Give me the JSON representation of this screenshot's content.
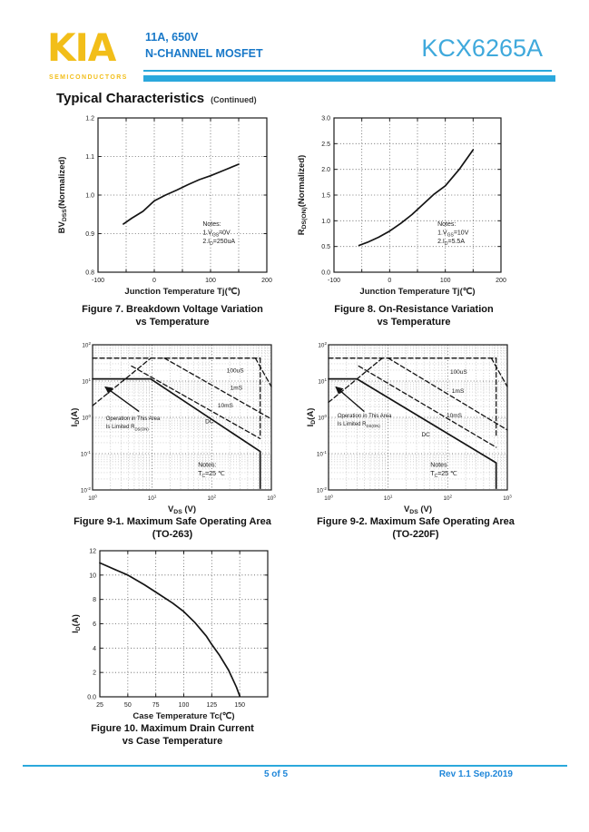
{
  "header": {
    "logo_text": "KIA",
    "logo_subtext": "SEMICONDUCTORS",
    "part_rating": "11A, 650V",
    "part_type": "N-CHANNEL MOSFET",
    "part_number": "KCX6265A"
  },
  "section_title": {
    "main": "Typical Characteristics",
    "continued": "(Continued)"
  },
  "footer": {
    "page": "5 of 5",
    "rev": "Rev 1.1 Sep.2019"
  },
  "colors": {
    "logo_yellow": "#F2BE19",
    "header_blue": "#1878C8",
    "part_number_blue": "#3FA9DC",
    "rule_cyan": "#2BA8DC",
    "footer_blue": "#1E86D9",
    "ink": "#1A1A1A"
  },
  "chart_data": [
    {
      "id": "fig7",
      "type": "line",
      "caption": [
        "Figure 7. Breakdown Voltage Variation",
        "vs Temperature"
      ],
      "xlabel": "Junction Temperature Tj(℃)",
      "ylabel": [
        {
          "t": "BV"
        },
        {
          "t": "DSS",
          "sub": true
        },
        {
          "t": "(Normalized)"
        }
      ],
      "xlim": [
        -100,
        200
      ],
      "ylim": [
        0.8,
        1.2
      ],
      "xticks": [
        [
          -100,
          "-100"
        ],
        [
          0,
          "0"
        ],
        [
          100,
          "100"
        ],
        [
          200,
          "200"
        ]
      ],
      "yticks": [
        [
          0.8,
          "0.8"
        ],
        [
          0.9,
          "0.9"
        ],
        [
          1.0,
          "1.0"
        ],
        [
          1.1,
          "1.1"
        ],
        [
          1.2,
          "1.2"
        ]
      ],
      "xgrid": [
        -50,
        0,
        50,
        100,
        150
      ],
      "ygrid": [
        0.9,
        1.0,
        1.1
      ],
      "series": [
        {
          "name": "BVdss",
          "dash": false,
          "pts": [
            [
              -55,
              0.925
            ],
            [
              -40,
              0.94
            ],
            [
              -20,
              0.958
            ],
            [
              0,
              0.985
            ],
            [
              20,
              1.0
            ],
            [
              40,
              1.013
            ],
            [
              60,
              1.027
            ],
            [
              80,
              1.04
            ],
            [
              100,
              1.05
            ],
            [
              125,
              1.065
            ],
            [
              150,
              1.08
            ]
          ]
        }
      ],
      "notes": {
        "at": [
          0.62,
          0.7
        ],
        "lines": [
          [
            {
              "t": "Notes:"
            }
          ],
          [
            {
              "t": "1.V"
            },
            {
              "t": "GS",
              "sub": true
            },
            {
              "t": "=0V"
            }
          ],
          [
            {
              "t": "2.I"
            },
            {
              "t": "D",
              "sub": true
            },
            {
              "t": "=250uA"
            }
          ]
        ]
      }
    },
    {
      "id": "fig8",
      "type": "line",
      "caption": [
        "Figure 8. On-Resistance Variation",
        "vs Temperature"
      ],
      "xlabel": "Junction Temperature Tj(℃)",
      "ylabel": [
        {
          "t": "R"
        },
        {
          "t": "DS(ON)",
          "sub": true
        },
        {
          "t": "(Normalized)"
        }
      ],
      "xlim": [
        -100,
        200
      ],
      "ylim": [
        0,
        3
      ],
      "xticks": [
        [
          -100,
          "-100"
        ],
        [
          0,
          "0"
        ],
        [
          100,
          "100"
        ],
        [
          200,
          "200"
        ]
      ],
      "yticks": [
        [
          0,
          "0.0"
        ],
        [
          0.5,
          "0.5"
        ],
        [
          1.0,
          "1.0"
        ],
        [
          1.5,
          "1.5"
        ],
        [
          2.0,
          "2.0"
        ],
        [
          2.5,
          "2.5"
        ],
        [
          3.0,
          "3.0"
        ]
      ],
      "xgrid": [
        -50,
        0,
        50,
        100,
        150
      ],
      "ygrid": [
        0.5,
        1.0,
        1.5,
        2.0,
        2.5
      ],
      "series": [
        {
          "name": "Rdson",
          "dash": false,
          "pts": [
            [
              -55,
              0.52
            ],
            [
              -40,
              0.58
            ],
            [
              -20,
              0.68
            ],
            [
              0,
              0.8
            ],
            [
              20,
              0.95
            ],
            [
              40,
              1.12
            ],
            [
              60,
              1.32
            ],
            [
              80,
              1.52
            ],
            [
              100,
              1.68
            ],
            [
              125,
              2.0
            ],
            [
              150,
              2.38
            ]
          ]
        }
      ],
      "notes": {
        "at": [
          0.62,
          0.7
        ],
        "lines": [
          [
            {
              "t": "Notes:"
            }
          ],
          [
            {
              "t": "1.V"
            },
            {
              "t": "GS",
              "sub": true
            },
            {
              "t": "=10V"
            }
          ],
          [
            {
              "t": "2.I"
            },
            {
              "t": "D",
              "sub": true
            },
            {
              "t": "=5.5A"
            }
          ]
        ]
      }
    },
    {
      "id": "fig9_1",
      "type": "soa",
      "caption": [
        "Figure 9-1. Maximum Safe Operating Area",
        "(TO-263)"
      ],
      "xlabel": [
        {
          "t": "V"
        },
        {
          "t": "DS",
          "sub": true
        },
        {
          "t": " (V)"
        }
      ],
      "ylabel": [
        {
          "t": "I"
        },
        {
          "t": "D",
          "sub": true
        },
        {
          "t": "(A)"
        }
      ],
      "xdec": [
        0,
        3
      ],
      "ydec": [
        -2,
        2
      ],
      "series": [
        {
          "name": "pulsed-current-limit",
          "dash": true,
          "pts": [
            [
              1,
              43
            ],
            [
              650,
              43
            ]
          ]
        },
        {
          "name": "voltage-limit-650V",
          "dash": true,
          "pts": [
            [
              650,
              43
            ],
            [
              650,
              0.3
            ]
          ]
        },
        {
          "name": "rdson-limit",
          "dash": true,
          "pts": [
            [
              1,
              2.1
            ],
            [
              9.5,
              43
            ]
          ]
        },
        {
          "name": "100uS",
          "dash": true,
          "pts": [
            [
              540,
              43
            ],
            [
              1000,
              7
            ]
          ]
        },
        {
          "name": "1mS",
          "dash": true,
          "pts": [
            [
              16,
              43
            ],
            [
              1000,
              0.9
            ]
          ]
        },
        {
          "name": "10mS",
          "dash": true,
          "pts": [
            [
              4.5,
              26
            ],
            [
              650,
              0.26
            ]
          ]
        },
        {
          "name": "DC",
          "dash": false,
          "pts": [
            [
              1,
              11.5
            ],
            [
              9.4,
              11.5
            ],
            [
              650,
              0.115
            ],
            [
              650,
              0.011
            ]
          ]
        }
      ],
      "labels": [
        [
          "100uS",
          0.75,
          0.19
        ],
        [
          "1mS",
          0.77,
          0.31
        ],
        [
          "10mS",
          0.7,
          0.43
        ],
        [
          "DC",
          0.63,
          0.54
        ]
      ],
      "annotation": {
        "lines": [
          [
            {
              "t": "Operation in This Area"
            }
          ],
          [
            {
              "t": "Is Limited R"
            },
            {
              "t": "DS(ON)",
              "sub": true
            }
          ]
        ],
        "at": [
          0.075,
          0.52
        ],
        "arrow": [
          0.26,
          0.46,
          0.07,
          0.29
        ]
      },
      "notes": {
        "at": [
          0.59,
          0.84
        ],
        "lines": [
          [
            {
              "t": "Notes:"
            }
          ],
          [
            {
              "t": "T"
            },
            {
              "t": "C",
              "sub": true
            },
            {
              "t": "=25 ℃"
            }
          ]
        ]
      }
    },
    {
      "id": "fig9_2",
      "type": "soa",
      "caption": [
        "Figure 9-2. Maximum Safe Operating Area",
        "(TO-220F)"
      ],
      "xlabel": [
        {
          "t": "V"
        },
        {
          "t": "DS",
          "sub": true
        },
        {
          "t": " (V)"
        }
      ],
      "ylabel": [
        {
          "t": "I"
        },
        {
          "t": "D",
          "sub": true
        },
        {
          "t": "(A)"
        }
      ],
      "xdec": [
        0,
        3
      ],
      "ydec": [
        -2,
        2
      ],
      "series": [
        {
          "name": "pulsed-current-limit",
          "dash": true,
          "pts": [
            [
              1,
              43
            ],
            [
              650,
              43
            ]
          ]
        },
        {
          "name": "voltage-limit-650V",
          "dash": true,
          "pts": [
            [
              650,
              43
            ],
            [
              650,
              0.3
            ]
          ]
        },
        {
          "name": "rdson-limit",
          "dash": true,
          "pts": [
            [
              1,
              2.6
            ],
            [
              8,
              43
            ]
          ]
        },
        {
          "name": "100uS",
          "dash": true,
          "pts": [
            [
              540,
              43
            ],
            [
              1000,
              7
            ]
          ]
        },
        {
          "name": "1mS",
          "dash": true,
          "pts": [
            [
              10,
              43
            ],
            [
              1000,
              0.45
            ]
          ]
        },
        {
          "name": "10mS",
          "dash": true,
          "pts": [
            [
              3.2,
              26
            ],
            [
              650,
              0.15
            ]
          ]
        },
        {
          "name": "DC",
          "dash": false,
          "pts": [
            [
              1,
              11.5
            ],
            [
              3,
              11.5
            ],
            [
              650,
              0.056
            ],
            [
              650,
              0.011
            ]
          ]
        }
      ],
      "labels": [
        [
          "100uS",
          0.68,
          0.2
        ],
        [
          "1mS",
          0.69,
          0.33
        ],
        [
          "10mS",
          0.66,
          0.5
        ],
        [
          "DC",
          0.52,
          0.63
        ]
      ],
      "annotation": {
        "lines": [
          [
            {
              "t": "Operation in This Area"
            }
          ],
          [
            {
              "t": "Is Limited R"
            },
            {
              "t": "DS(ON)",
              "sub": true
            }
          ]
        ],
        "at": [
          0.05,
          0.5
        ],
        "arrow": [
          0.2,
          0.46,
          0.04,
          0.29
        ]
      },
      "notes": {
        "at": [
          0.57,
          0.84
        ],
        "lines": [
          [
            {
              "t": "Notes"
            }
          ],
          [
            {
              "t": "T"
            },
            {
              "t": "C",
              "sub": true
            },
            {
              "t": "=25 ℃"
            }
          ]
        ]
      }
    },
    {
      "id": "fig10",
      "type": "line",
      "caption": [
        "Figure 10. Maximum Drain Current",
        "vs Case Temperature"
      ],
      "xlabel": "Case Temperature Tc(℃)",
      "ylabel": [
        {
          "t": "I"
        },
        {
          "t": "D",
          "sub": true
        },
        {
          "t": "(A)"
        }
      ],
      "xlim": [
        25,
        175
      ],
      "ylim": [
        0,
        12
      ],
      "xticks": [
        [
          25,
          "25"
        ],
        [
          50,
          "50"
        ],
        [
          75,
          "75"
        ],
        [
          100,
          "100"
        ],
        [
          125,
          "125"
        ],
        [
          150,
          "150"
        ]
      ],
      "yticks": [
        [
          0,
          "0.0"
        ],
        [
          2,
          "2"
        ],
        [
          4,
          "4"
        ],
        [
          6,
          "6"
        ],
        [
          8,
          "8"
        ],
        [
          10,
          "10"
        ],
        [
          12,
          "12"
        ]
      ],
      "xgrid": [
        50,
        75,
        100,
        125,
        150
      ],
      "ygrid": [
        2,
        4,
        6,
        8,
        10
      ],
      "series": [
        {
          "name": "Id-max",
          "dash": false,
          "pts": [
            [
              25,
              11
            ],
            [
              40,
              10.4
            ],
            [
              50,
              10
            ],
            [
              65,
              9.2
            ],
            [
              75,
              8.6
            ],
            [
              90,
              7.7
            ],
            [
              100,
              7
            ],
            [
              110,
              6.1
            ],
            [
              120,
              5.0
            ],
            [
              125,
              4.3
            ],
            [
              132,
              3.4
            ],
            [
              140,
              2.2
            ],
            [
              147,
              0.8
            ],
            [
              150,
              0.05
            ]
          ]
        }
      ]
    }
  ]
}
